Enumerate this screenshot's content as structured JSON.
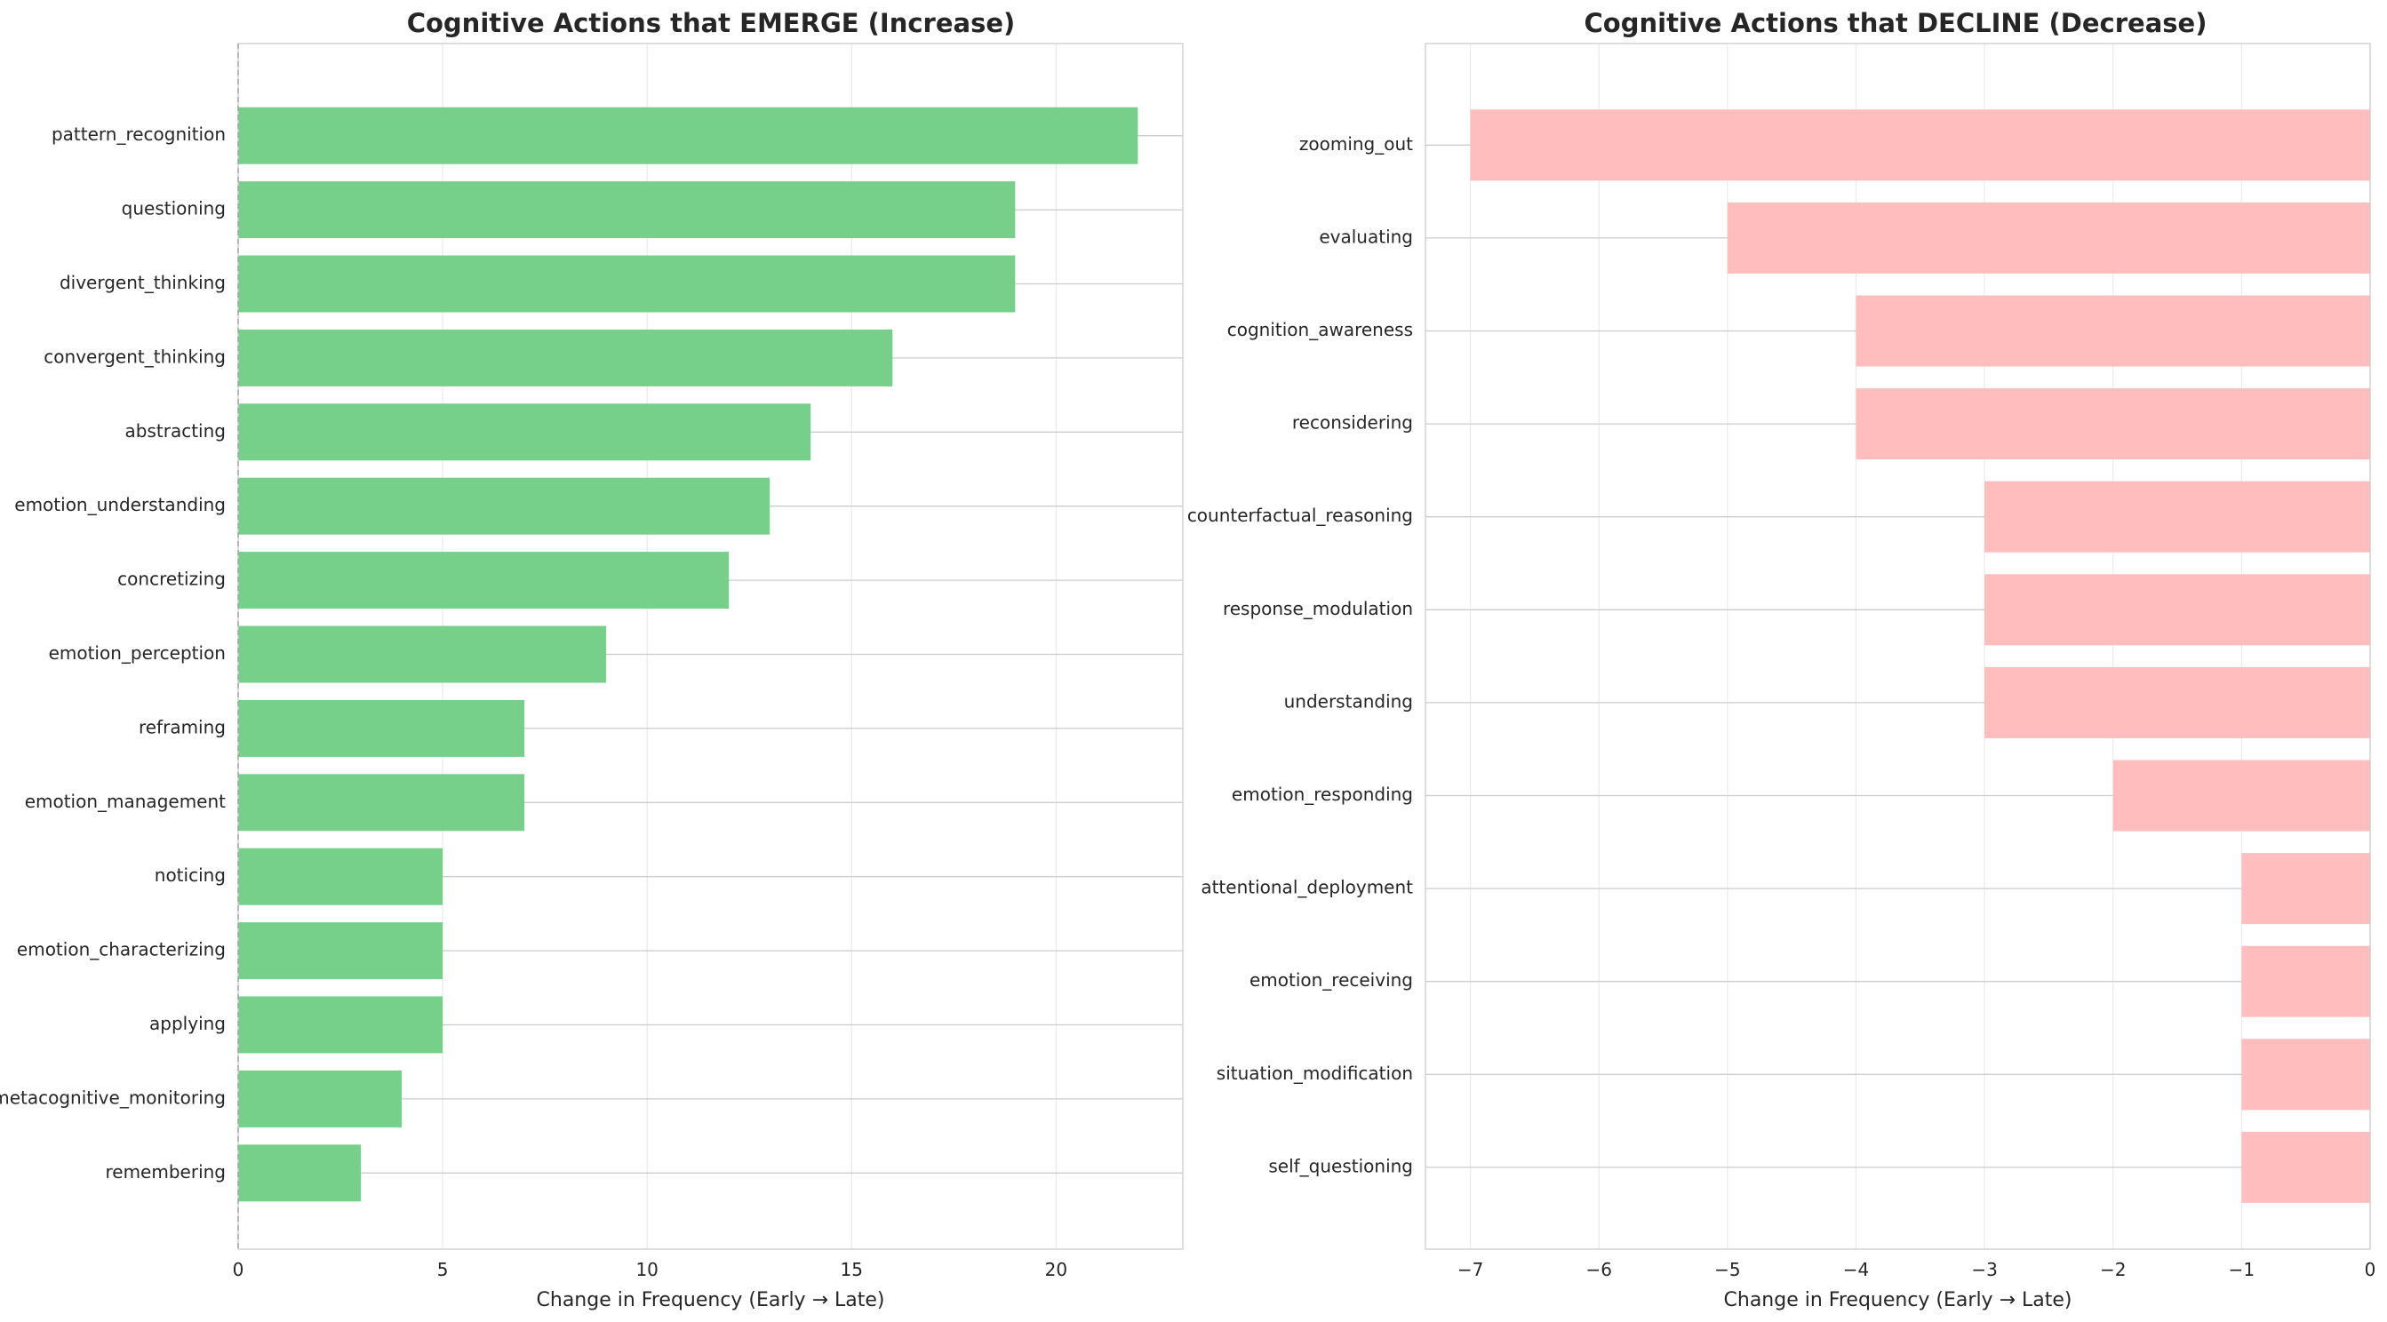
{
  "chart_data": [
    {
      "type": "bar",
      "orientation": "horizontal",
      "title": "Cognitive Actions that EMERGE (Increase)",
      "xlabel": "Change in Frequency (Early → Late)",
      "ylabel": "",
      "xlim": [
        0,
        23.1
      ],
      "xticks": [
        0,
        5,
        10,
        15,
        20
      ],
      "xtick_labels": [
        "0",
        "5",
        "10",
        "15",
        "20"
      ],
      "grid": true,
      "bar_color": "#77d08a",
      "categories": [
        "pattern_recognition",
        "questioning",
        "divergent_thinking",
        "convergent_thinking",
        "abstracting",
        "emotion_understanding",
        "concretizing",
        "emotion_perception",
        "reframing",
        "emotion_management",
        "noticing",
        "emotion_characterizing",
        "applying",
        "metacognitive_monitoring",
        "remembering"
      ],
      "values": [
        22,
        19,
        19,
        16,
        14,
        13,
        12,
        9,
        7,
        7,
        5,
        5,
        5,
        4,
        3
      ]
    },
    {
      "type": "bar",
      "orientation": "horizontal",
      "title": "Cognitive Actions that DECLINE (Decrease)",
      "xlabel": "Change in Frequency (Early → Late)",
      "ylabel": "",
      "xlim": [
        -7.35,
        0
      ],
      "xticks": [
        -7,
        -6,
        -5,
        -4,
        -3,
        -2,
        -1,
        0
      ],
      "xtick_labels": [
        "−7",
        "−6",
        "−5",
        "−4",
        "−3",
        "−2",
        "−1",
        "0"
      ],
      "grid": true,
      "bar_color": "#ffbdbd",
      "categories": [
        "zooming_out",
        "evaluating",
        "cognition_awareness",
        "reconsidering",
        "counterfactual_reasoning",
        "response_modulation",
        "understanding",
        "emotion_responding",
        "attentional_deployment",
        "emotion_receiving",
        "situation_modification",
        "self_questioning"
      ],
      "values": [
        -7,
        -5,
        -4,
        -4,
        -3,
        -3,
        -3,
        -2,
        -1,
        -1,
        -1,
        -1
      ]
    }
  ]
}
